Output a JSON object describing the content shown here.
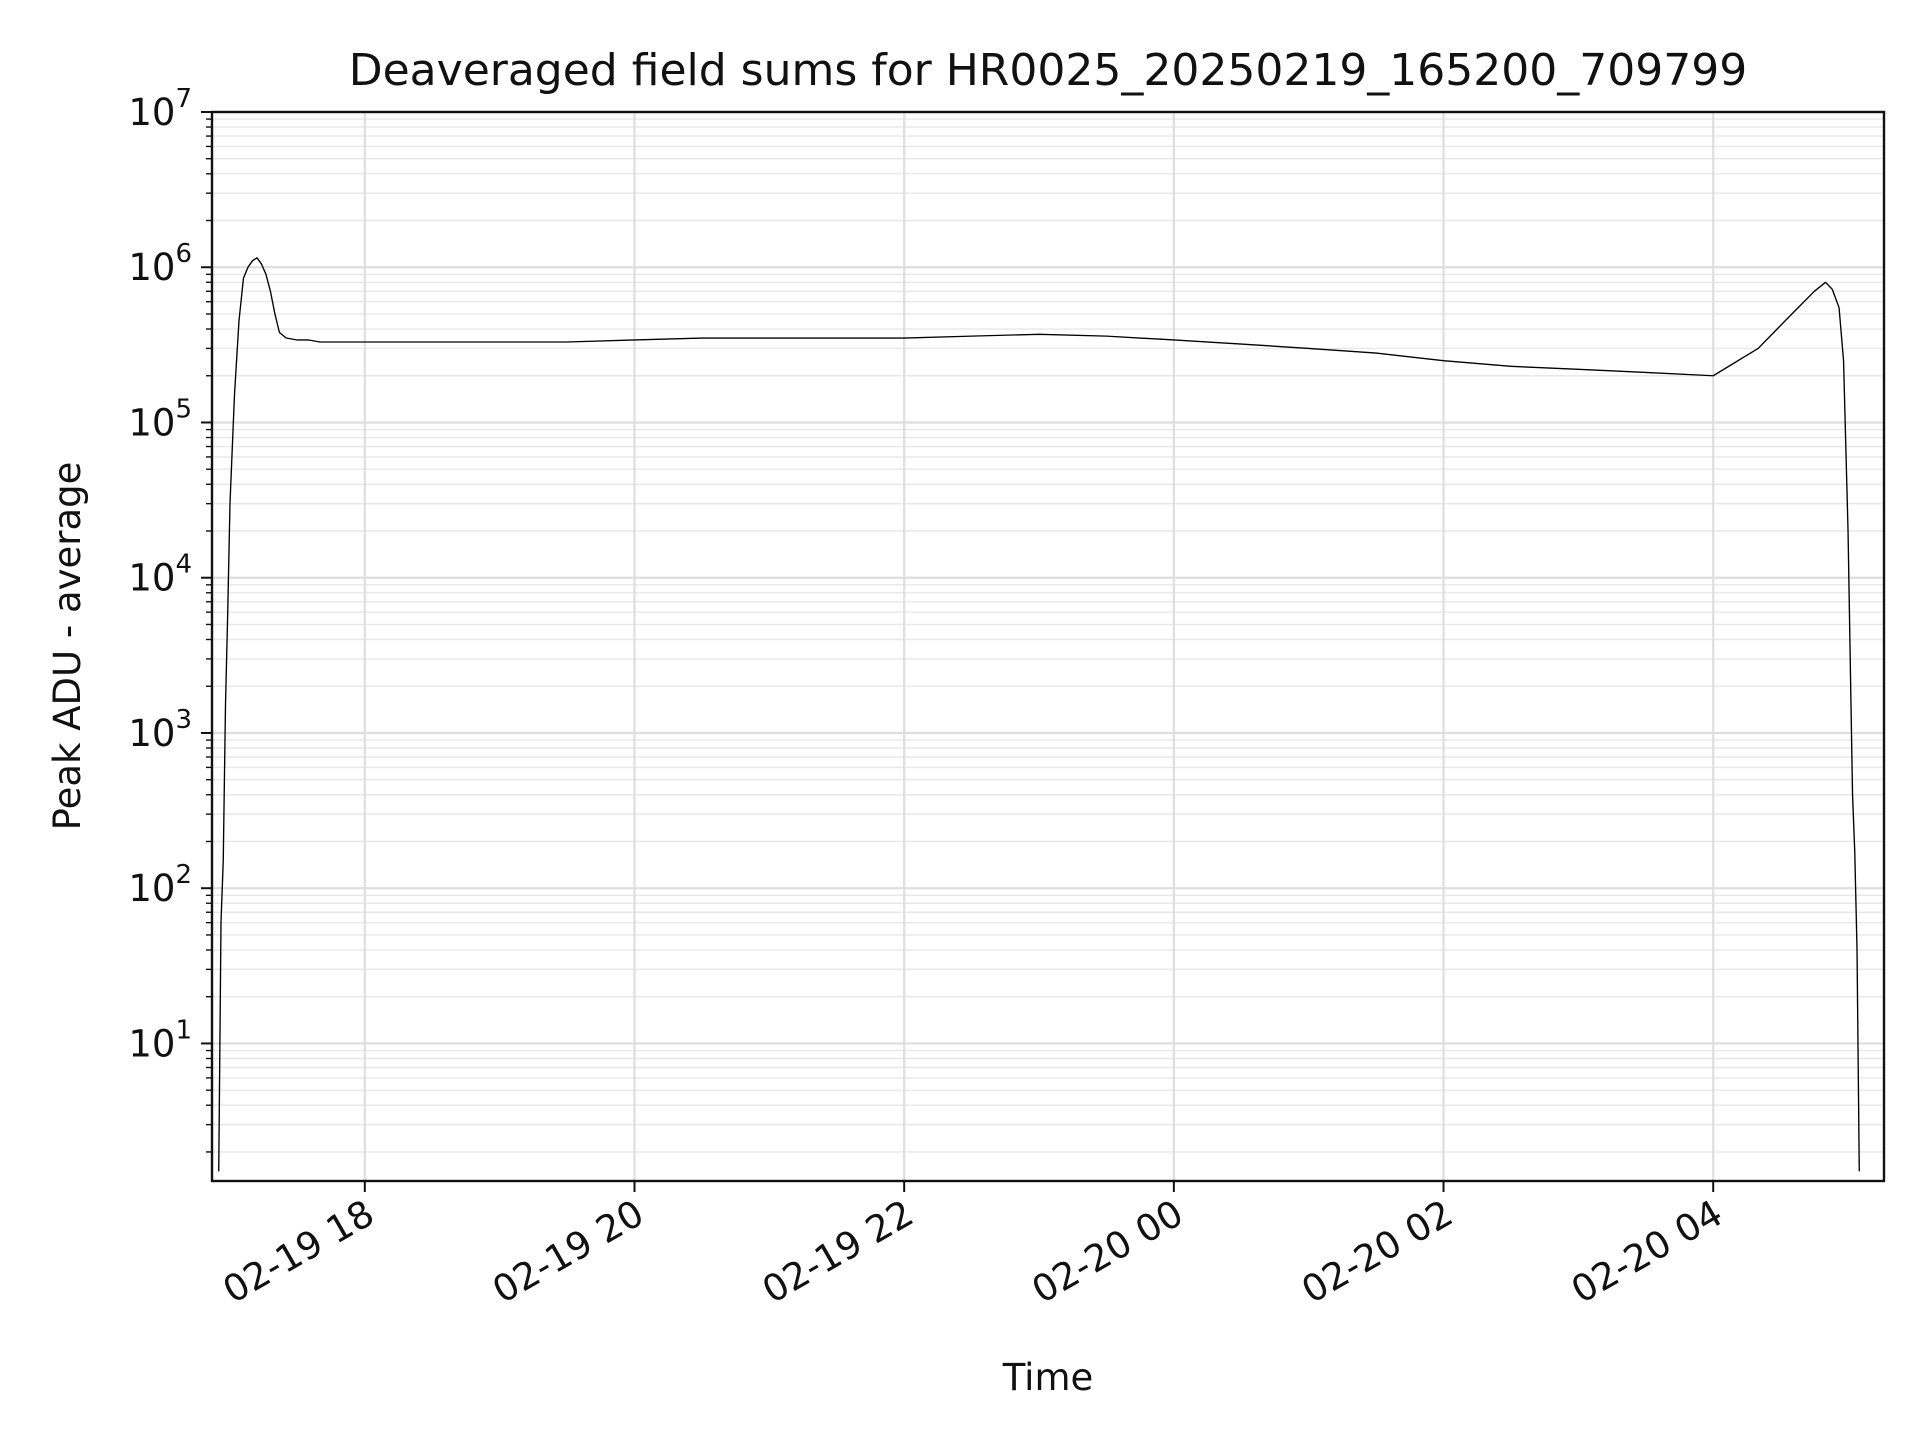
{
  "chart_data": {
    "type": "line",
    "title": "Deaveraged field sums for HR0025_20250219_165200_709799",
    "xlabel": "Time",
    "ylabel": "Peak ADU - average",
    "yscale": "log",
    "ylim": [
      1.3,
      10000000
    ],
    "xlim": [
      "2025-02-19 16:52",
      "2025-02-20 05:16"
    ],
    "grid": true,
    "x_ticks": [
      {
        "x": "2025-02-19 18:00",
        "label": "02-19 18"
      },
      {
        "x": "2025-02-19 20:00",
        "label": "02-19 20"
      },
      {
        "x": "2025-02-19 22:00",
        "label": "02-19 22"
      },
      {
        "x": "2025-02-20 00:00",
        "label": "02-20 00"
      },
      {
        "x": "2025-02-20 02:00",
        "label": "02-20 02"
      },
      {
        "x": "2025-02-20 04:00",
        "label": "02-20 04"
      }
    ],
    "y_ticks": [
      {
        "value": 10,
        "base": "10",
        "exp": "1"
      },
      {
        "value": 100,
        "base": "10",
        "exp": "2"
      },
      {
        "value": 1000,
        "base": "10",
        "exp": "3"
      },
      {
        "value": 10000,
        "base": "10",
        "exp": "4"
      },
      {
        "value": 100000,
        "base": "10",
        "exp": "5"
      },
      {
        "value": 1000000,
        "base": "10",
        "exp": "6"
      },
      {
        "value": 10000000,
        "base": "10",
        "exp": "7"
      }
    ],
    "series": [
      {
        "color": "#000000",
        "x": [
          "2025-02-19 16:55",
          "2025-02-19 16:56",
          "2025-02-19 16:57",
          "2025-02-19 16:58",
          "2025-02-19 16:59",
          "2025-02-19 17:00",
          "2025-02-19 17:02",
          "2025-02-19 17:04",
          "2025-02-19 17:06",
          "2025-02-19 17:08",
          "2025-02-19 17:10",
          "2025-02-19 17:12",
          "2025-02-19 17:14",
          "2025-02-19 17:16",
          "2025-02-19 17:18",
          "2025-02-19 17:20",
          "2025-02-19 17:22",
          "2025-02-19 17:25",
          "2025-02-19 17:30",
          "2025-02-19 17:35",
          "2025-02-19 17:40",
          "2025-02-19 17:45",
          "2025-02-19 17:50",
          "2025-02-19 18:00",
          "2025-02-19 18:15",
          "2025-02-19 18:30",
          "2025-02-19 19:00",
          "2025-02-19 19:30",
          "2025-02-19 20:00",
          "2025-02-19 20:30",
          "2025-02-19 21:00",
          "2025-02-19 21:30",
          "2025-02-19 22:00",
          "2025-02-19 22:30",
          "2025-02-19 23:00",
          "2025-02-19 23:30",
          "2025-02-20 00:00",
          "2025-02-20 00:30",
          "2025-02-20 01:00",
          "2025-02-20 01:30",
          "2025-02-20 02:00",
          "2025-02-20 02:30",
          "2025-02-20 03:00",
          "2025-02-20 03:30",
          "2025-02-20 04:00",
          "2025-02-20 04:20",
          "2025-02-20 04:35",
          "2025-02-20 04:45",
          "2025-02-20 04:50",
          "2025-02-20 04:53",
          "2025-02-20 04:56",
          "2025-02-20 04:58",
          "2025-02-20 05:00",
          "2025-02-20 05:02",
          "2025-02-20 05:03",
          "2025-02-20 05:04",
          "2025-02-20 05:05"
        ],
        "values": [
          1.5,
          60,
          150,
          1500,
          6000,
          30000,
          150000,
          450000,
          850000,
          1000000,
          1100000,
          1150000,
          1050000,
          900000,
          700000,
          500000,
          380000,
          350000,
          340000,
          340000,
          330000,
          330000,
          330000,
          330000,
          330000,
          330000,
          330000,
          330000,
          340000,
          350000,
          350000,
          350000,
          350000,
          360000,
          370000,
          360000,
          340000,
          320000,
          300000,
          280000,
          250000,
          230000,
          220000,
          210000,
          200000,
          300000,
          500000,
          700000,
          800000,
          720000,
          550000,
          250000,
          20000,
          400,
          170,
          40,
          1.5
        ]
      }
    ],
    "annotations": []
  }
}
